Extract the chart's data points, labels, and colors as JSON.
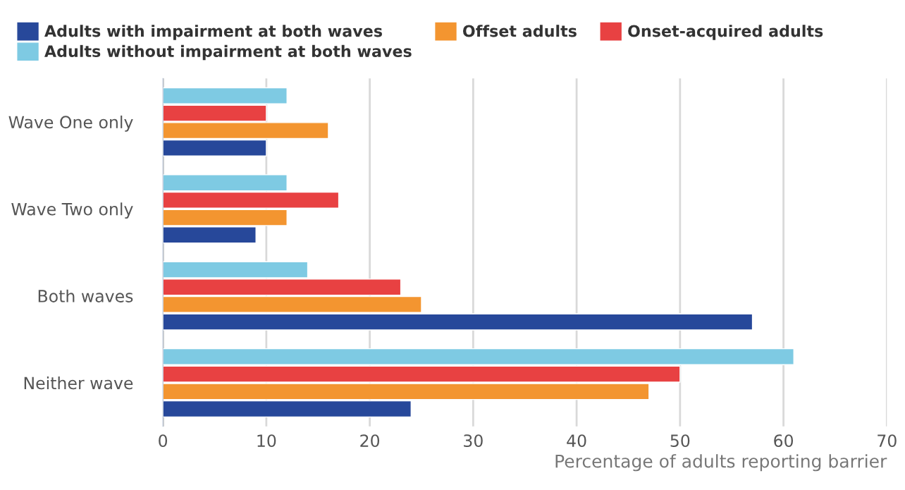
{
  "chart_data": {
    "type": "bar",
    "orientation": "horizontal",
    "xlabel": "Percentage of adults reporting barrier",
    "categories": [
      "Wave One only",
      "Wave Two only",
      "Both waves",
      "Neither wave"
    ],
    "series": [
      {
        "name": "Adults with impairment at both waves",
        "color": "#27489a",
        "values": [
          10,
          9,
          57,
          24
        ]
      },
      {
        "name": "Offset adults",
        "color": "#f39530",
        "values": [
          16,
          12,
          25,
          47
        ]
      },
      {
        "name": "Onset-acquired adults",
        "color": "#e84142",
        "values": [
          10,
          17,
          23,
          50
        ]
      },
      {
        "name": "Adults without impairment at both waves",
        "color": "#7ecae3",
        "values": [
          12,
          12,
          14,
          61
        ]
      }
    ],
    "xlim": [
      0,
      70
    ],
    "xticks": [
      0,
      10,
      20,
      30,
      40,
      50,
      60,
      70
    ],
    "grid": "x",
    "legend": "top"
  }
}
